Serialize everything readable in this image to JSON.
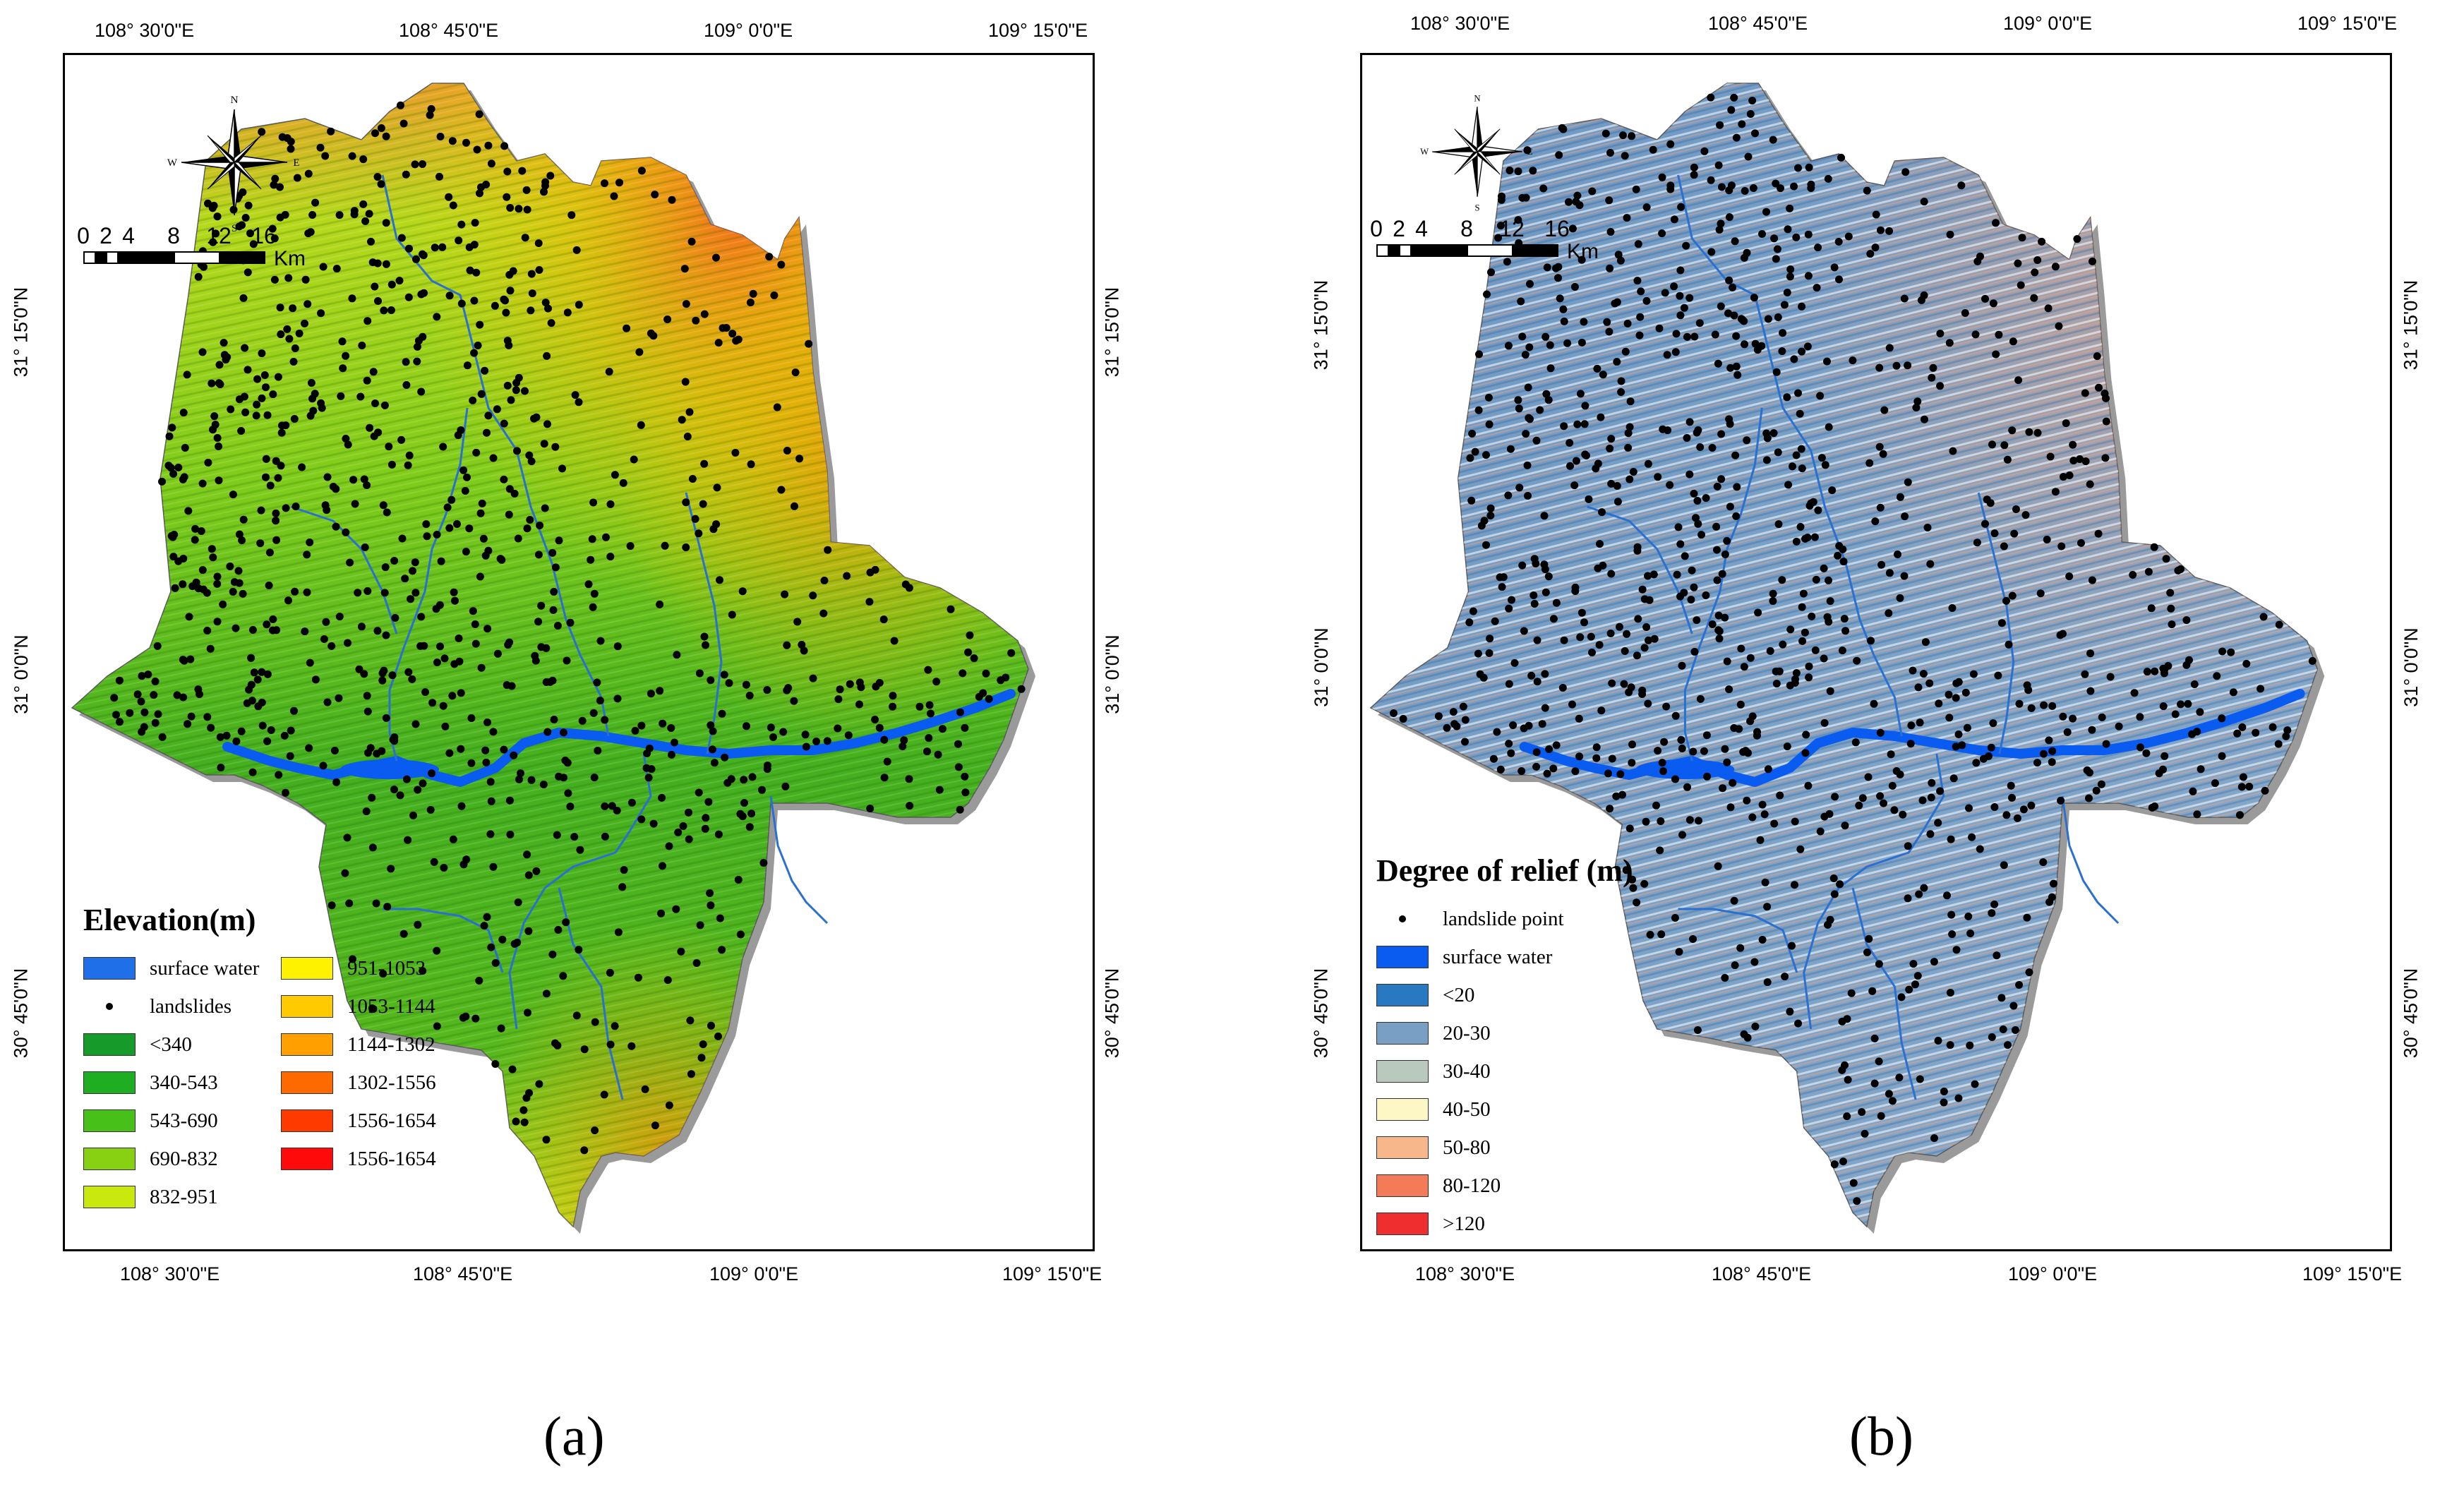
{
  "panels": {
    "a": {
      "label": "(a)",
      "legend_title": "Elevation(m)",
      "legend_col1": [
        {
          "label": "surface water",
          "color": "#1f6fe8",
          "kind": "swatch"
        },
        {
          "label": "landslides",
          "color": "#000000",
          "kind": "dot"
        },
        {
          "label": "<340",
          "color": "#169a2a",
          "kind": "swatch"
        },
        {
          "label": "340-543",
          "color": "#1fae22",
          "kind": "swatch"
        },
        {
          "label": "543-690",
          "color": "#47c01a",
          "kind": "swatch"
        },
        {
          "label": "690-832",
          "color": "#88d112",
          "kind": "swatch"
        },
        {
          "label": "832-951",
          "color": "#c9e80c",
          "kind": "swatch"
        }
      ],
      "legend_col2": [
        {
          "label": "951-1053",
          "color": "#fff200",
          "kind": "swatch"
        },
        {
          "label": "1053-1144",
          "color": "#ffcb00",
          "kind": "swatch"
        },
        {
          "label": "1144-1302",
          "color": "#ff9f00",
          "kind": "swatch"
        },
        {
          "label": "1302-1556",
          "color": "#ff6a00",
          "kind": "swatch"
        },
        {
          "label": "1556-1654",
          "color": "#ff3a00",
          "kind": "swatch"
        },
        {
          "label": "1556-1654",
          "color": "#ff0a0a",
          "kind": "swatch"
        }
      ],
      "top_ticks": [
        "108° 30'0\"E",
        "108° 45'0\"E",
        "109° 0'0\"E",
        "109° 15'0\"E"
      ],
      "bottom_ticks": [
        "108° 30'0\"E",
        "108° 45'0\"E",
        "109° 0'0\"E",
        "109° 15'0\"E"
      ],
      "left_ticks": [
        "31° 15'0\"N",
        "31° 0'0\"N",
        "30° 45'0\"N"
      ],
      "right_ticks": [
        "31° 15'0\"N",
        "31° 0'0\"N",
        "30° 45'0\"N"
      ],
      "scale_nums": [
        "0",
        "2",
        "4",
        "8",
        "12",
        "16"
      ],
      "scale_unit": "Km",
      "compass": {
        "n": "N",
        "s": "S",
        "e": "E",
        "w": "W"
      }
    },
    "b": {
      "label": "(b)",
      "legend_title": "Degree of relief (m)",
      "legend_items": [
        {
          "label": "landslide point",
          "color": "#000000",
          "kind": "dot"
        },
        {
          "label": "surface water",
          "color": "#0a5cf0",
          "kind": "swatch"
        },
        {
          "label": "<20",
          "color": "#2878c2",
          "kind": "swatch"
        },
        {
          "label": "20-30",
          "color": "#7a9fc4",
          "kind": "swatch"
        },
        {
          "label": "30-40",
          "color": "#b9c9bd",
          "kind": "swatch"
        },
        {
          "label": "40-50",
          "color": "#fcf7c4",
          "kind": "swatch"
        },
        {
          "label": "50-80",
          "color": "#f7b78a",
          "kind": "swatch"
        },
        {
          "label": "80-120",
          "color": "#f47b57",
          "kind": "swatch"
        },
        {
          "label": ">120",
          "color": "#ef2f2f",
          "kind": "swatch"
        }
      ],
      "top_ticks": [
        "108° 30'0\"E",
        "108° 45'0\"E",
        "109° 0'0\"E",
        "109° 15'0\"E"
      ],
      "bottom_ticks": [
        "108° 30'0\"E",
        "108° 45'0\"E",
        "109° 0'0\"E",
        "109° 15'0\"E"
      ],
      "left_ticks": [
        "31° 15'0\"N",
        "31° 0'0\"N",
        "30° 45'0\"N"
      ],
      "right_ticks": [
        "31° 15'0\"N",
        "31° 0'0\"N",
        "30° 45'0\"N"
      ],
      "scale_nums": [
        "0",
        "2",
        "4",
        "8",
        "12",
        "16"
      ],
      "scale_unit": "Km",
      "compass": {
        "n": "N",
        "s": "S",
        "e": "E",
        "w": "W"
      }
    }
  },
  "colors": {
    "river": "#0a5cf0",
    "dots": "#000000",
    "frame": "#000000"
  }
}
